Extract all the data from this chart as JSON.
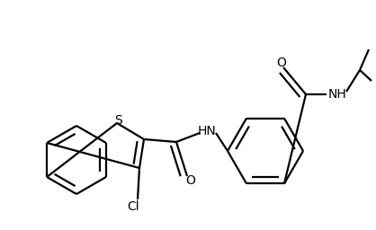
{
  "background_color": "#ffffff",
  "line_color": "#000000",
  "lw": 1.6,
  "dbo": 0.018,
  "figsize": [
    4.18,
    2.56
  ],
  "dpi": 100,
  "xlim": [
    0,
    418
  ],
  "ylim": [
    0,
    256
  ]
}
